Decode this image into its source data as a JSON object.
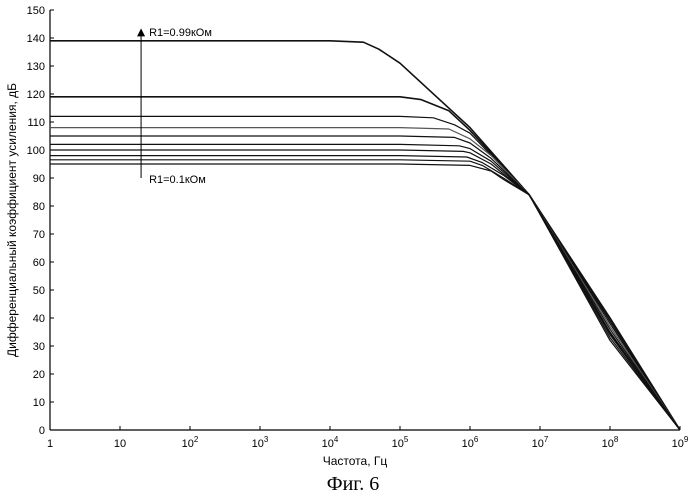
{
  "chart_data": {
    "type": "line",
    "x_scale": "log",
    "xlabel": "Частота, Гц",
    "ylabel": "Дифференциальный коэффициент усиления, дБ",
    "xlim": [
      1,
      1000000000
    ],
    "ylim": [
      0,
      150
    ],
    "x_tick_values": [
      1,
      10,
      100,
      1000,
      10000,
      100000,
      1000000,
      10000000,
      100000000,
      1000000000
    ],
    "x_tick_labels": [
      {
        "base": "1",
        "exp": ""
      },
      {
        "base": "10",
        "exp": ""
      },
      {
        "base": "10",
        "exp": "2"
      },
      {
        "base": "10",
        "exp": "3"
      },
      {
        "base": "10",
        "exp": "4"
      },
      {
        "base": "10",
        "exp": "5"
      },
      {
        "base": "10",
        "exp": "6"
      },
      {
        "base": "10",
        "exp": "7"
      },
      {
        "base": "10",
        "exp": "8"
      },
      {
        "base": "10",
        "exp": "9"
      }
    ],
    "y_ticks": [
      0,
      10,
      20,
      30,
      40,
      50,
      60,
      70,
      80,
      90,
      100,
      110,
      120,
      130,
      140,
      150
    ],
    "grid": false,
    "series": [
      {
        "dc_gain": 139,
        "points": [
          [
            1,
            139
          ],
          [
            10,
            139
          ],
          [
            100,
            139
          ],
          [
            1000,
            139
          ],
          [
            10000,
            139
          ],
          [
            30000,
            138.5
          ],
          [
            50000,
            136
          ],
          [
            100000,
            131
          ],
          [
            1000000,
            108
          ],
          [
            7000000,
            84
          ],
          [
            100000000,
            40
          ],
          [
            1000000000,
            0
          ]
        ]
      },
      {
        "dc_gain": 119,
        "points": [
          [
            1,
            119
          ],
          [
            10,
            119
          ],
          [
            100,
            119
          ],
          [
            1000,
            119
          ],
          [
            10000,
            119
          ],
          [
            100000,
            119
          ],
          [
            200000,
            118
          ],
          [
            500000,
            114
          ],
          [
            1000000,
            107
          ],
          [
            7000000,
            84
          ],
          [
            100000000,
            39
          ],
          [
            1000000000,
            0
          ]
        ]
      },
      {
        "dc_gain": 112,
        "points": [
          [
            1,
            112
          ],
          [
            10,
            112
          ],
          [
            100,
            112
          ],
          [
            1000,
            112
          ],
          [
            10000,
            112
          ],
          [
            100000,
            112
          ],
          [
            300000,
            111.5
          ],
          [
            600000,
            109
          ],
          [
            1000000,
            106
          ],
          [
            7000000,
            84
          ],
          [
            100000000,
            38
          ],
          [
            1000000000,
            0
          ]
        ]
      },
      {
        "dc_gain": 108,
        "points": [
          [
            1,
            108
          ],
          [
            10,
            108
          ],
          [
            100,
            108
          ],
          [
            1000,
            108
          ],
          [
            10000,
            108
          ],
          [
            100000,
            108
          ],
          [
            500000,
            107.5
          ],
          [
            1000000,
            104
          ],
          [
            2000000,
            98
          ],
          [
            7000000,
            84
          ],
          [
            100000000,
            37
          ],
          [
            1000000000,
            0
          ]
        ]
      },
      {
        "dc_gain": 105,
        "points": [
          [
            1,
            105
          ],
          [
            10,
            105
          ],
          [
            100,
            105
          ],
          [
            1000,
            105
          ],
          [
            10000,
            105
          ],
          [
            100000,
            105
          ],
          [
            600000,
            104.5
          ],
          [
            1000000,
            102.5
          ],
          [
            2000000,
            97
          ],
          [
            7000000,
            84
          ],
          [
            100000000,
            36
          ],
          [
            1000000000,
            0
          ]
        ]
      },
      {
        "dc_gain": 102,
        "points": [
          [
            1,
            102
          ],
          [
            10,
            102
          ],
          [
            100,
            102
          ],
          [
            1000,
            102
          ],
          [
            10000,
            102
          ],
          [
            100000,
            102
          ],
          [
            700000,
            101.5
          ],
          [
            1000000,
            100.5
          ],
          [
            2000000,
            96
          ],
          [
            7000000,
            84
          ],
          [
            100000000,
            35
          ],
          [
            1000000000,
            0
          ]
        ]
      },
      {
        "dc_gain": 100,
        "points": [
          [
            1,
            100
          ],
          [
            10,
            100
          ],
          [
            100,
            100
          ],
          [
            1000,
            100
          ],
          [
            10000,
            100
          ],
          [
            100000,
            100
          ],
          [
            800000,
            99.5
          ],
          [
            1000000,
            99
          ],
          [
            2000000,
            95
          ],
          [
            7000000,
            84
          ],
          [
            100000000,
            34.5
          ],
          [
            1000000000,
            0
          ]
        ]
      },
      {
        "dc_gain": 98,
        "points": [
          [
            1,
            98
          ],
          [
            10,
            98
          ],
          [
            100,
            98
          ],
          [
            1000,
            98
          ],
          [
            10000,
            98
          ],
          [
            100000,
            98
          ],
          [
            900000,
            97.5
          ],
          [
            1500000,
            95.5
          ],
          [
            3000000,
            91
          ],
          [
            7000000,
            84
          ],
          [
            100000000,
            34
          ],
          [
            1000000000,
            0
          ]
        ]
      },
      {
        "dc_gain": 96.5,
        "points": [
          [
            1,
            96.5
          ],
          [
            10,
            96.5
          ],
          [
            100,
            96.5
          ],
          [
            1000,
            96.5
          ],
          [
            10000,
            96.5
          ],
          [
            100000,
            96.5
          ],
          [
            1000000,
            96
          ],
          [
            1500000,
            94.5
          ],
          [
            3000000,
            90
          ],
          [
            7000000,
            84
          ],
          [
            100000000,
            33
          ],
          [
            1000000000,
            0
          ]
        ]
      },
      {
        "dc_gain": 95,
        "points": [
          [
            1,
            95
          ],
          [
            10,
            95
          ],
          [
            100,
            95
          ],
          [
            1000,
            95
          ],
          [
            10000,
            95
          ],
          [
            100000,
            95
          ],
          [
            1000000,
            94.5
          ],
          [
            2000000,
            92.5
          ],
          [
            3000000,
            89.5
          ],
          [
            7000000,
            84
          ],
          [
            100000000,
            32
          ],
          [
            1000000000,
            0
          ]
        ]
      }
    ],
    "annotations": [
      {
        "text": "R1=0.99кОм",
        "x": 20,
        "y": 141.5,
        "anchor": "arrow-head"
      },
      {
        "text": "R1=0.1кОм",
        "x": 20,
        "y": 89,
        "anchor": "arrow-tail"
      }
    ],
    "arrow": {
      "x": 20,
      "y_from": 90,
      "y_to": 142
    }
  },
  "figure_caption": "Фиг. 6"
}
